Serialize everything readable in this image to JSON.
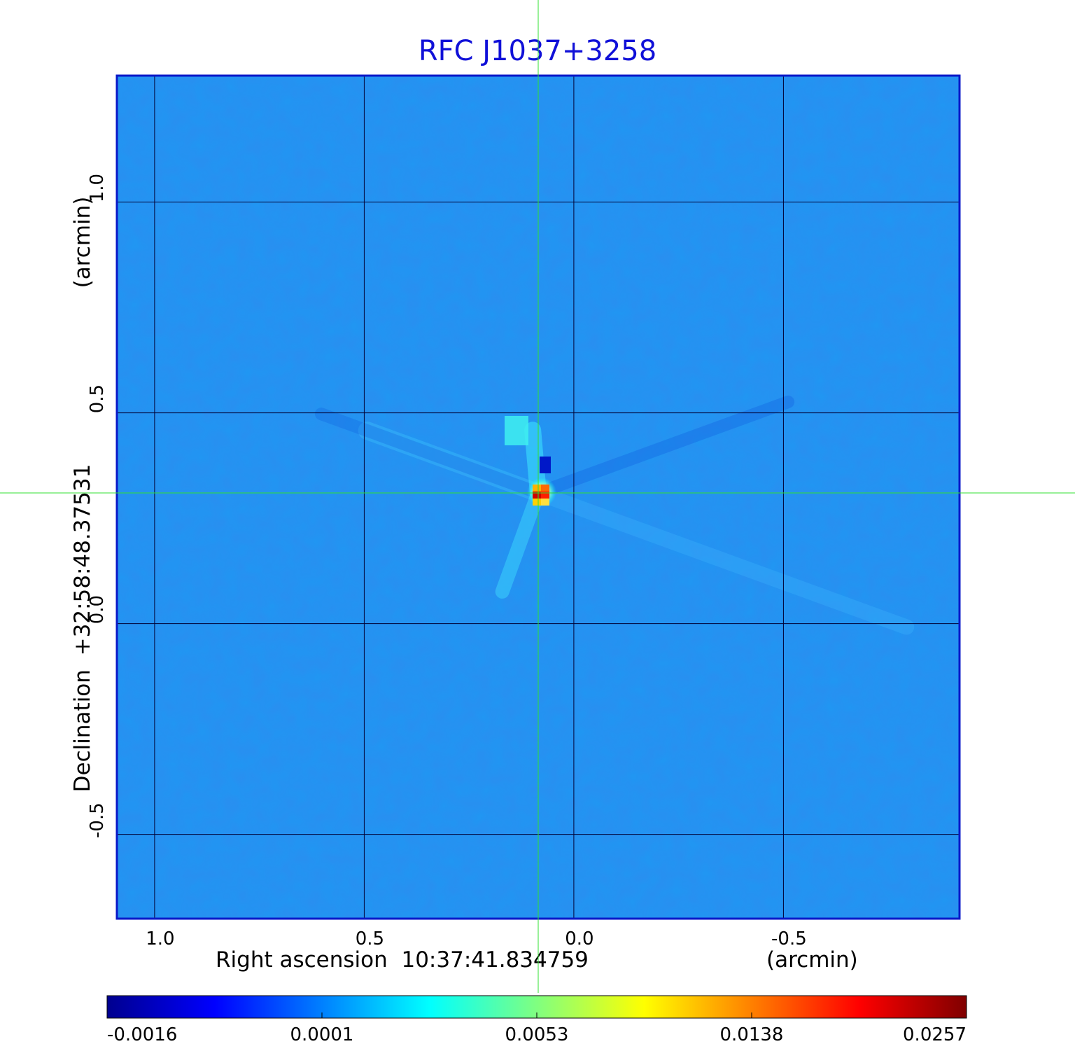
{
  "chart_data": {
    "type": "heatmap",
    "title": "RFC J1037+3258",
    "xlabel": "Right ascension  10:37:41.834759",
    "xunit": "(arcmin)",
    "ylabel": "Declination  +32:58:48.37531",
    "yunit": "(arcmin)",
    "xlim": [
      1.09,
      -0.92
    ],
    "ylim": [
      -0.7,
      1.3
    ],
    "x_ticks": [
      {
        "value": 1.0,
        "label": "1.0"
      },
      {
        "value": 0.5,
        "label": "0.5"
      },
      {
        "value": 0.0,
        "label": "0.0"
      },
      {
        "value": -0.5,
        "label": "-0.5"
      }
    ],
    "y_ticks": [
      {
        "value": 1.0,
        "label": "1.0"
      },
      {
        "value": 0.5,
        "label": "0.5"
      },
      {
        "value": 0.0,
        "label": "0.0"
      },
      {
        "value": -0.5,
        "label": "-0.5"
      }
    ],
    "grid": true,
    "crosshair": {
      "x": 0.085,
      "y": 0.31
    },
    "source": {
      "x": 0.085,
      "y": 0.31,
      "peak": 0.0257
    },
    "colorbar": {
      "ticks": [
        "-0.0016",
        "0.0001",
        "0.0053",
        "0.0138",
        "0.0257"
      ],
      "colors": [
        "#00008f",
        "#0000ff",
        "#0080ff",
        "#00ffff",
        "#80ff80",
        "#ffff00",
        "#ff8000",
        "#ff0000",
        "#800000"
      ]
    },
    "colors": {
      "background_map": "#2a90f0",
      "frame": "#0a18c8",
      "grid": "#000033",
      "crosshair": "#30e030",
      "title": "#1010d8"
    }
  }
}
